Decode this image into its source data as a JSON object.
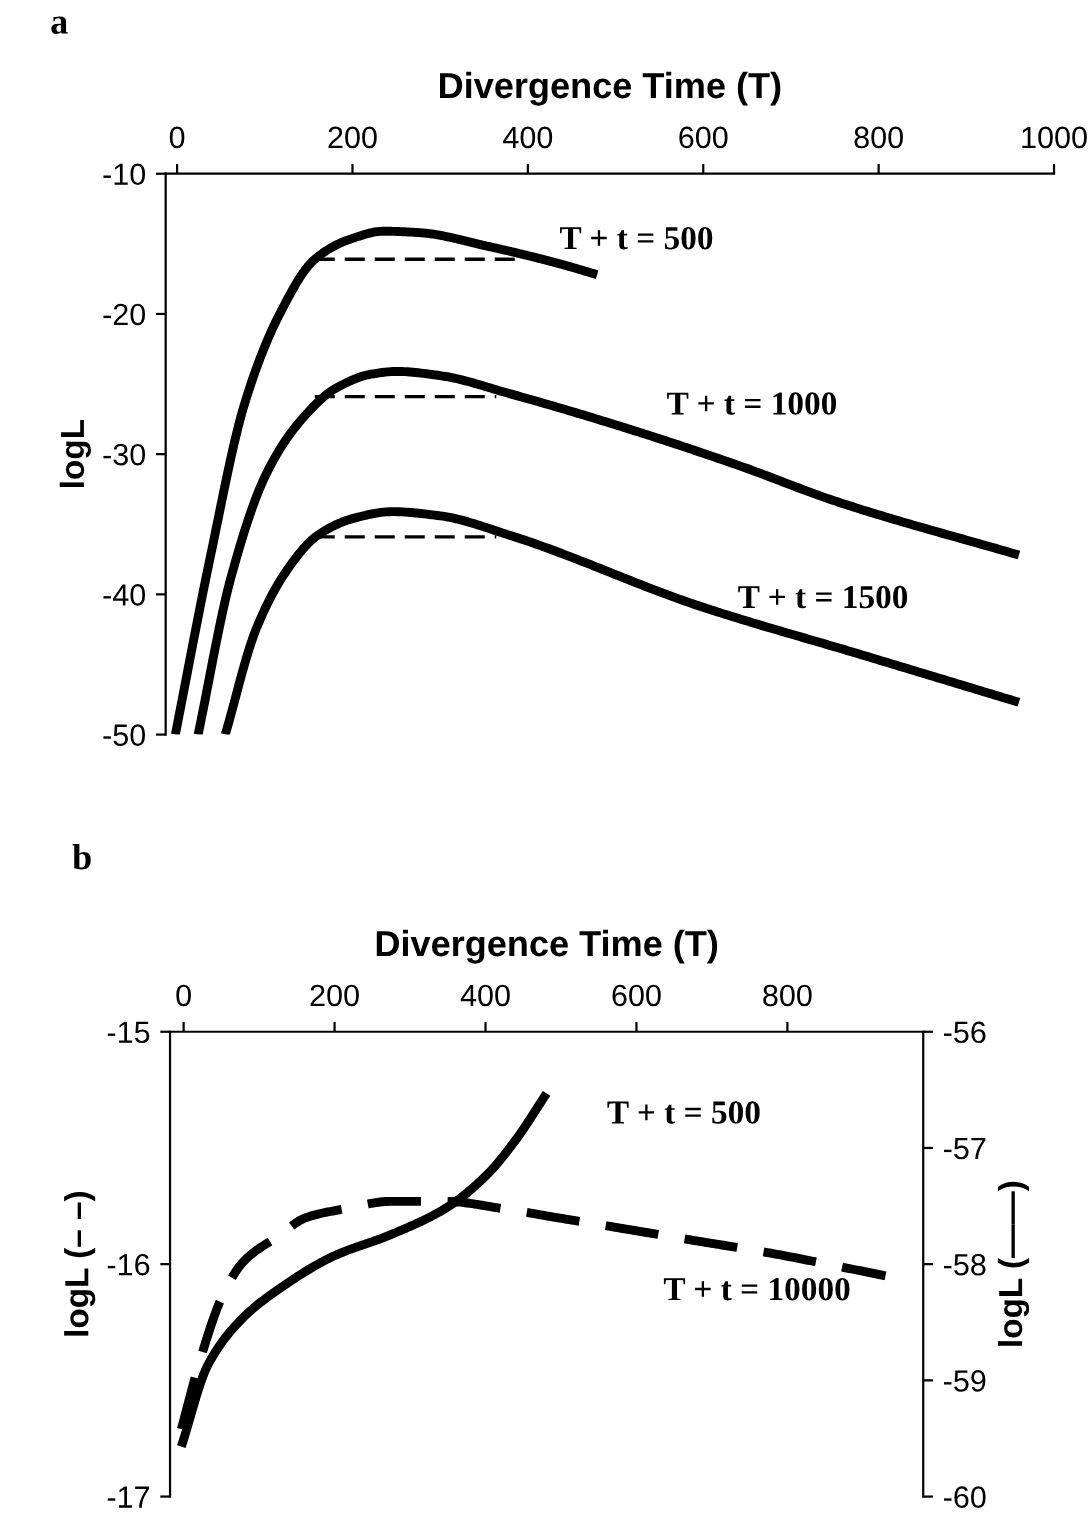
{
  "chart_data": [
    {
      "type": "line",
      "title": "a",
      "xlabel": "Divergence Time (T)",
      "ylabel": "logL",
      "xlim": [
        -13,
        1000
      ],
      "xticks": [
        0,
        200,
        400,
        600,
        800,
        1000
      ],
      "ylim": [
        -50,
        -10
      ],
      "yticks": [
        -10,
        -20,
        -30,
        -40,
        -50
      ],
      "grid": false,
      "legend": false,
      "series": [
        {
          "name": "T + t = 500",
          "color": "#000000",
          "line_style": "solid",
          "x": [
            -2,
            37,
            77,
            117,
            157,
            196,
            236,
            276,
            356,
            435,
            479
          ],
          "values": [
            -50,
            -37.6,
            -26.4,
            -20,
            -16.1,
            -14.7,
            -14.1,
            -14.2,
            -15.2,
            -16.4,
            -17.2
          ]
        },
        {
          "name": "T + t = 1000",
          "color": "#000000",
          "line_style": "solid",
          "x": [
            24,
            61,
            101,
            141,
            181,
            221,
            250,
            300,
            380,
            515,
            640,
            753,
            960
          ],
          "values": [
            -50,
            -38.9,
            -31.5,
            -27.6,
            -25.3,
            -24.3,
            -24.1,
            -24.4,
            -25.7,
            -28.2,
            -30.8,
            -33.4,
            -37.2
          ]
        },
        {
          "name": "T + t = 1500",
          "color": "#000000",
          "line_style": "solid",
          "x": [
            55,
            90,
            125,
            160,
            200,
            245,
            300,
            380,
            594,
            780,
            960
          ],
          "values": [
            -50,
            -42.5,
            -38.3,
            -35.8,
            -34.6,
            -34.1,
            -34.4,
            -35.8,
            -40.8,
            -44.3,
            -47.7
          ]
        },
        {
          "color": "#000000",
          "line_style": "dashed",
          "x": [
            157,
            387
          ],
          "values": [
            -16.1,
            -16.1
          ]
        },
        {
          "color": "#000000",
          "line_style": "dashed",
          "x": [
            157,
            364
          ],
          "values": [
            -25.9,
            -25.9
          ]
        },
        {
          "color": "#000000",
          "line_style": "dashed",
          "x": [
            157,
            364
          ],
          "values": [
            -35.9,
            -35.9
          ]
        }
      ]
    },
    {
      "type": "line",
      "title": "b",
      "xlabel": "Divergence Time (T)",
      "ylabel": "logL (– –)",
      "y2label": "logL (——)",
      "xlim": [
        -18,
        980
      ],
      "xticks": [
        0,
        200,
        400,
        600,
        800
      ],
      "ylim": [
        -17,
        -15
      ],
      "yticks": [
        -15,
        -16,
        -17
      ],
      "y2lim": [
        -60,
        -56
      ],
      "y2ticks": [
        -56,
        -57,
        -58,
        -59,
        -60
      ],
      "grid": false,
      "legend": false,
      "series": [
        {
          "name": "T + t = 500",
          "color": "#000000",
          "line_style": "solid",
          "axis": "y2",
          "x": [
            -3,
            32,
            79,
            125,
            199,
            273,
            347,
            402,
            439,
            481
          ],
          "values": [
            -59.57,
            -58.87,
            -58.46,
            -58.22,
            -57.93,
            -57.75,
            -57.52,
            -57.23,
            -56.94,
            -56.53
          ]
        },
        {
          "name": "T + t = 10000",
          "color": "#000000",
          "line_style": "dashed",
          "x": [
            -3,
            23,
            51,
            79,
            125,
            162,
            217,
            273,
            347,
            421,
            495,
            588,
            680,
            773,
            930
          ],
          "values": [
            -16.71,
            -16.4,
            -16.14,
            -15.99,
            -15.88,
            -15.8,
            -15.76,
            -15.73,
            -15.73,
            -15.76,
            -15.8,
            -15.85,
            -15.9,
            -15.95,
            -16.05
          ]
        }
      ]
    }
  ]
}
